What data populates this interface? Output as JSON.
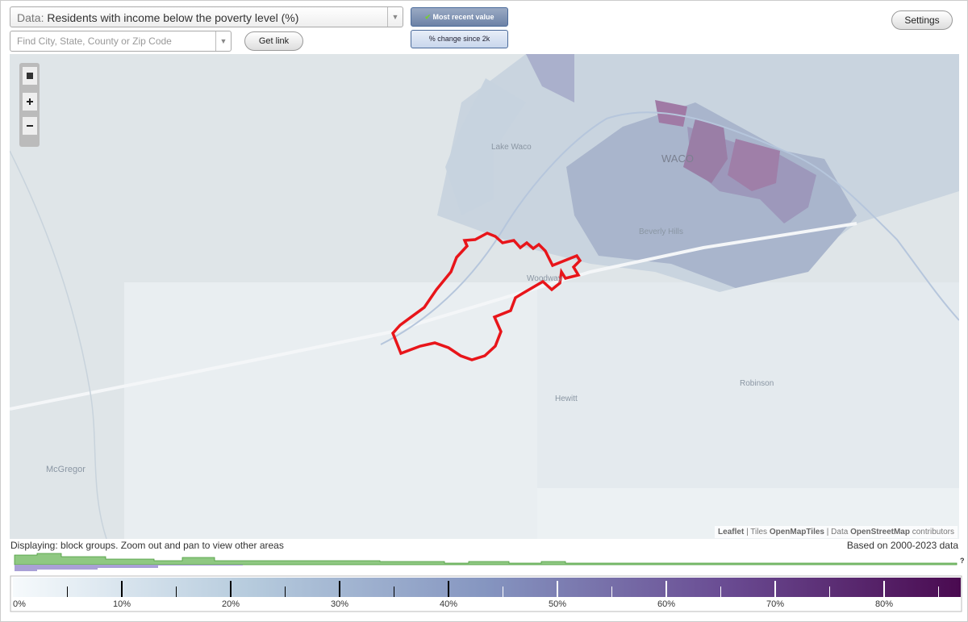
{
  "controls": {
    "data_label": "Data:",
    "data_value": "Residents with income below the poverty level (%)",
    "search_placeholder": "Find City, State, County or Zip Code",
    "get_link": "Get link",
    "most_recent": "Most recent value",
    "change": "% change since 2k",
    "settings": "Settings"
  },
  "map": {
    "labels": [
      "Lake Waco",
      "WACO",
      "Beverly Hills",
      "Woodway",
      "Hewitt",
      "Robinson",
      "McGregor"
    ],
    "attribution": [
      "Leaflet",
      "|",
      "Tiles",
      "OpenMapTiles",
      "|",
      "Data",
      "OpenStreetMap",
      "contributors"
    ]
  },
  "footer": {
    "displaying": "Displaying: block groups. Zoom out and pan to view other areas",
    "based_on": "Based on 2000-2023 data",
    "help": "?"
  },
  "legend": {
    "labels": [
      "0%",
      "10%",
      "20%",
      "30%",
      "40%",
      "50%",
      "60%",
      "70%",
      "80%"
    ]
  }
}
